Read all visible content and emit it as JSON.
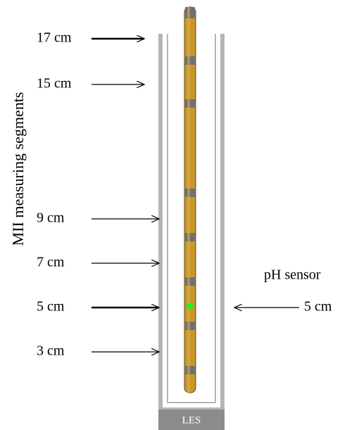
{
  "axis_title": "MII measuring segments",
  "segments": [
    {
      "label": "17 cm"
    },
    {
      "label": "15 cm"
    },
    {
      "label": "9 cm"
    },
    {
      "label": "7 cm"
    },
    {
      "label": "5 cm"
    },
    {
      "label": "3 cm"
    }
  ],
  "ph_sensor": {
    "title": "pH sensor",
    "label": "5 cm"
  },
  "bottom_label": "LES"
}
